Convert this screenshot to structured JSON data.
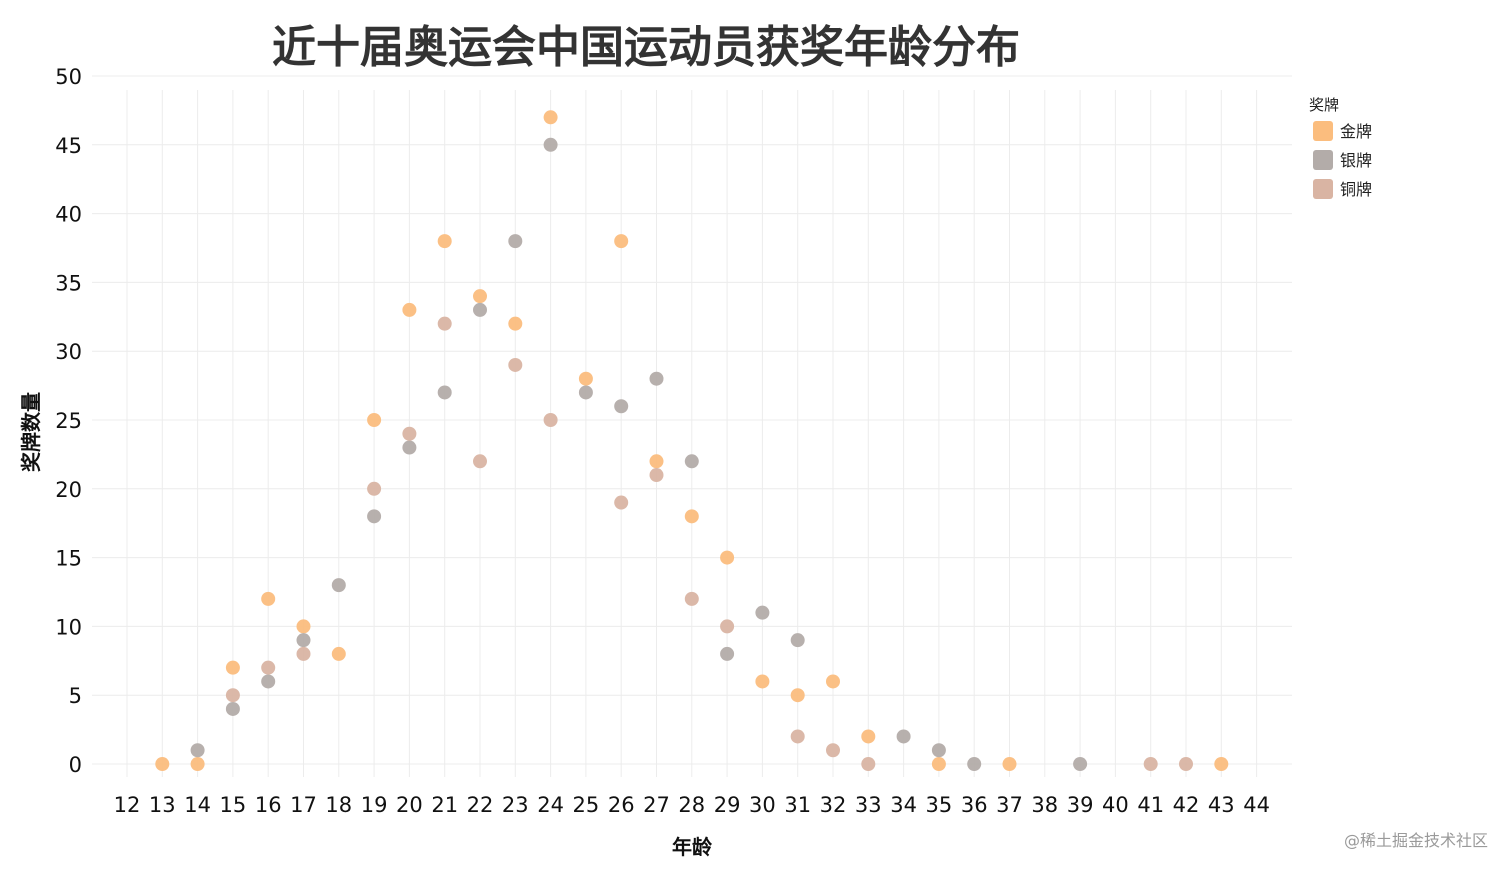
{
  "chart_data": {
    "type": "scatter",
    "title": "近十届奥运会中国运动员获奖年龄分布",
    "xlabel": "年龄",
    "ylabel": "奖牌数量",
    "xlim": [
      12,
      44
    ],
    "ylim": [
      0,
      50
    ],
    "xticks": [
      12,
      13,
      14,
      15,
      16,
      17,
      18,
      19,
      20,
      21,
      22,
      23,
      24,
      25,
      26,
      27,
      28,
      29,
      30,
      31,
      32,
      33,
      34,
      35,
      36,
      37,
      38,
      39,
      40,
      41,
      42,
      43,
      44
    ],
    "yticks": [
      0,
      5,
      10,
      15,
      20,
      25,
      30,
      35,
      40,
      45,
      50
    ],
    "grid": true,
    "legend_position": "top-right",
    "legend_title": "奖牌",
    "series": [
      {
        "name": "金牌",
        "color": "#fbbd7e",
        "points": [
          [
            13,
            0
          ],
          [
            14,
            0
          ],
          [
            15,
            7
          ],
          [
            16,
            12
          ],
          [
            17,
            10
          ],
          [
            18,
            8
          ],
          [
            19,
            25
          ],
          [
            20,
            33
          ],
          [
            21,
            38
          ],
          [
            22,
            34
          ],
          [
            23,
            32
          ],
          [
            24,
            47
          ],
          [
            25,
            28
          ],
          [
            26,
            38
          ],
          [
            27,
            22
          ],
          [
            28,
            18
          ],
          [
            29,
            15
          ],
          [
            30,
            6
          ],
          [
            31,
            5
          ],
          [
            32,
            6
          ],
          [
            33,
            2
          ],
          [
            35,
            0
          ],
          [
            37,
            0
          ],
          [
            43,
            0
          ]
        ]
      },
      {
        "name": "银牌",
        "color": "#b3aca9",
        "points": [
          [
            14,
            1
          ],
          [
            15,
            4
          ],
          [
            16,
            6
          ],
          [
            17,
            9
          ],
          [
            18,
            13
          ],
          [
            19,
            18
          ],
          [
            20,
            23
          ],
          [
            21,
            27
          ],
          [
            22,
            33
          ],
          [
            23,
            38
          ],
          [
            24,
            45
          ],
          [
            25,
            27
          ],
          [
            26,
            26
          ],
          [
            27,
            28
          ],
          [
            28,
            22
          ],
          [
            29,
            8
          ],
          [
            30,
            11
          ],
          [
            31,
            9
          ],
          [
            34,
            2
          ],
          [
            35,
            1
          ],
          [
            36,
            0
          ],
          [
            39,
            0
          ]
        ]
      },
      {
        "name": "铜牌",
        "color": "#d9b4a3",
        "points": [
          [
            15,
            5
          ],
          [
            16,
            7
          ],
          [
            17,
            8
          ],
          [
            19,
            20
          ],
          [
            20,
            24
          ],
          [
            21,
            32
          ],
          [
            22,
            22
          ],
          [
            23,
            29
          ],
          [
            24,
            25
          ],
          [
            26,
            19
          ],
          [
            27,
            21
          ],
          [
            28,
            12
          ],
          [
            29,
            10
          ],
          [
            31,
            2
          ],
          [
            32,
            1
          ],
          [
            33,
            0
          ],
          [
            41,
            0
          ],
          [
            42,
            0
          ]
        ]
      }
    ]
  },
  "watermark": "@稀土掘金技术社区"
}
